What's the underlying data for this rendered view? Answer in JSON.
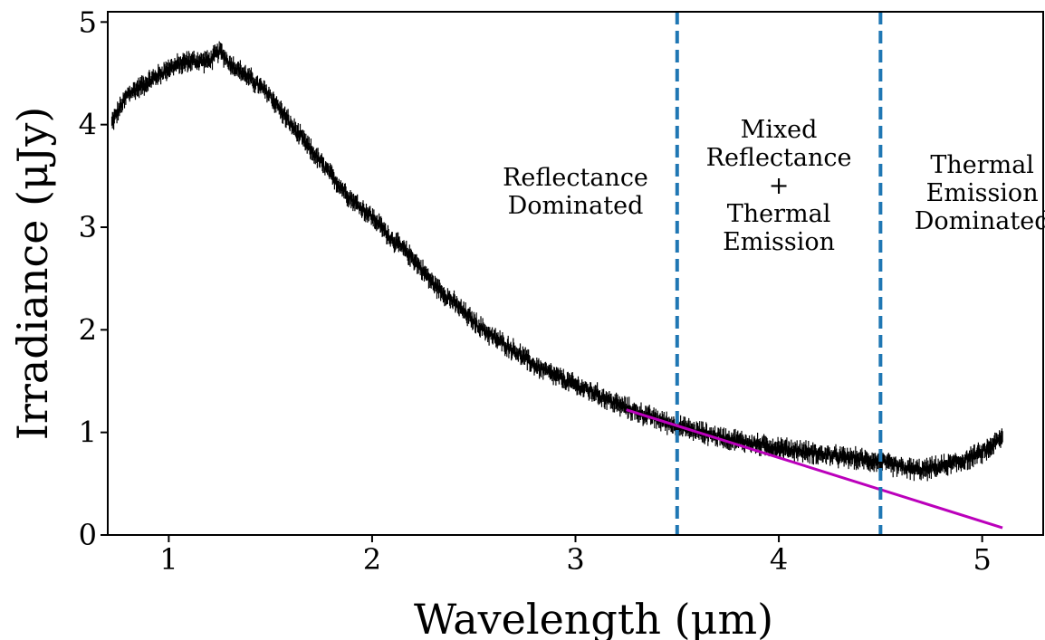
{
  "chart_data": {
    "type": "line",
    "title": "",
    "xlabel": "Wavelength (μm)",
    "ylabel": "Irradiance (μJy)",
    "xlim": [
      0.7,
      5.3
    ],
    "ylim": [
      0,
      5.1
    ],
    "grid": false,
    "x_ticks": [
      1,
      2,
      3,
      4,
      5
    ],
    "y_ticks": [
      0,
      1,
      2,
      3,
      4,
      5
    ],
    "x_tick_labels": [
      "1",
      "2",
      "3",
      "4",
      "5"
    ],
    "y_tick_labels": [
      "0",
      "1",
      "2",
      "3",
      "4",
      "5"
    ],
    "series": [
      {
        "color": "#000000",
        "style": "noisy-errorbar-line",
        "x": [
          0.7,
          0.8,
          0.9,
          1.0,
          1.1,
          1.2,
          1.25,
          1.3,
          1.4,
          1.5,
          1.6,
          1.7,
          1.8,
          1.9,
          2.0,
          2.1,
          2.2,
          2.3,
          2.4,
          2.5,
          2.6,
          2.7,
          2.8,
          2.9,
          3.0,
          3.1,
          3.2,
          3.3,
          3.4,
          3.5,
          3.6,
          3.7,
          3.8,
          3.9,
          4.0,
          4.1,
          4.2,
          4.3,
          4.4,
          4.5,
          4.6,
          4.7,
          4.8,
          4.9,
          5.0,
          5.1
        ],
        "y": [
          3.95,
          4.3,
          4.42,
          4.55,
          4.62,
          4.62,
          4.72,
          4.6,
          4.45,
          4.28,
          4.0,
          3.75,
          3.5,
          3.27,
          3.1,
          2.88,
          2.7,
          2.45,
          2.27,
          2.08,
          1.92,
          1.8,
          1.65,
          1.55,
          1.46,
          1.38,
          1.28,
          1.2,
          1.13,
          1.06,
          1.01,
          0.96,
          0.92,
          0.88,
          0.85,
          0.82,
          0.79,
          0.76,
          0.74,
          0.71,
          0.66,
          0.63,
          0.67,
          0.72,
          0.8,
          0.95
        ]
      },
      {
        "color": "#bb00bb",
        "style": "line",
        "x": [
          3.25,
          5.1
        ],
        "y": [
          1.22,
          0.07
        ]
      }
    ],
    "vlines": [
      {
        "x": 3.5,
        "color": "#1f77b4",
        "style": "dashed"
      },
      {
        "x": 4.5,
        "color": "#1f77b4",
        "style": "dashed"
      }
    ],
    "annotations": [
      {
        "x": 3.0,
        "lines": [
          "Reflectance",
          "Dominated"
        ]
      },
      {
        "x": 4.0,
        "lines": [
          "Mixed",
          "Reflectance",
          "+",
          "Thermal",
          "Emission"
        ]
      },
      {
        "x": 5.0,
        "lines": [
          "Thermal",
          "Emission",
          "Dominated"
        ]
      }
    ]
  }
}
